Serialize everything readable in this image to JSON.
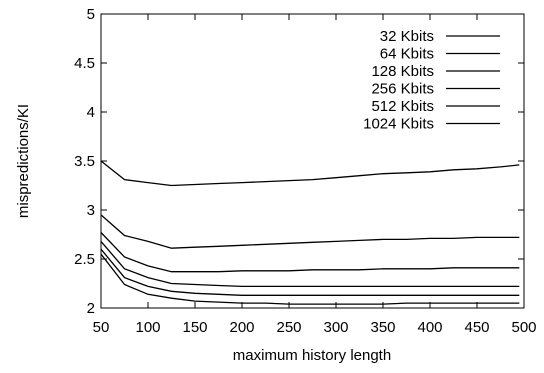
{
  "chart_data": {
    "type": "line",
    "title": "",
    "xlabel": "maximum history length",
    "ylabel": "mispredictions/KI",
    "xlim": [
      50,
      500
    ],
    "ylim": [
      2,
      5
    ],
    "xticks": [
      50,
      100,
      150,
      200,
      250,
      300,
      350,
      400,
      450,
      500
    ],
    "yticks": [
      2,
      2.5,
      3,
      3.5,
      4,
      4.5,
      5
    ],
    "xtick_labels": [
      "50",
      "100",
      "150",
      "200",
      "250",
      "300",
      "350",
      "400",
      "450",
      "500"
    ],
    "ytick_labels": [
      "2",
      "2.5",
      "3",
      "3.5",
      "4",
      "4.5",
      "5"
    ],
    "grid": false,
    "legend_position": "top-right",
    "x": [
      50,
      75,
      100,
      125,
      150,
      175,
      200,
      225,
      250,
      275,
      300,
      325,
      350,
      375,
      400,
      425,
      450,
      475,
      495
    ],
    "series": [
      {
        "name": "32 Kbits",
        "values": [
          3.5,
          3.31,
          3.28,
          3.25,
          3.26,
          3.27,
          3.28,
          3.29,
          3.3,
          3.31,
          3.33,
          3.35,
          3.37,
          3.38,
          3.39,
          3.41,
          3.42,
          3.44,
          3.46
        ]
      },
      {
        "name": "64 Kbits",
        "values": [
          2.95,
          2.74,
          2.68,
          2.61,
          2.62,
          2.63,
          2.64,
          2.65,
          2.66,
          2.67,
          2.68,
          2.69,
          2.7,
          2.7,
          2.71,
          2.71,
          2.72,
          2.72,
          2.72
        ]
      },
      {
        "name": "128 Kbits",
        "values": [
          2.77,
          2.52,
          2.43,
          2.37,
          2.37,
          2.37,
          2.38,
          2.38,
          2.38,
          2.39,
          2.39,
          2.39,
          2.4,
          2.4,
          2.4,
          2.41,
          2.41,
          2.41,
          2.41
        ]
      },
      {
        "name": "256 Kbits",
        "values": [
          2.68,
          2.4,
          2.31,
          2.25,
          2.24,
          2.23,
          2.22,
          2.22,
          2.22,
          2.22,
          2.22,
          2.22,
          2.22,
          2.22,
          2.22,
          2.22,
          2.22,
          2.22,
          2.22
        ]
      },
      {
        "name": "512 Kbits",
        "values": [
          2.6,
          2.31,
          2.22,
          2.17,
          2.15,
          2.14,
          2.13,
          2.13,
          2.13,
          2.13,
          2.13,
          2.13,
          2.13,
          2.13,
          2.13,
          2.13,
          2.13,
          2.13,
          2.13
        ]
      },
      {
        "name": "1024 Kbits",
        "values": [
          2.55,
          2.24,
          2.14,
          2.1,
          2.07,
          2.06,
          2.05,
          2.05,
          2.04,
          2.04,
          2.04,
          2.04,
          2.04,
          2.05,
          2.05,
          2.05,
          2.05,
          2.05,
          2.05
        ]
      }
    ]
  }
}
